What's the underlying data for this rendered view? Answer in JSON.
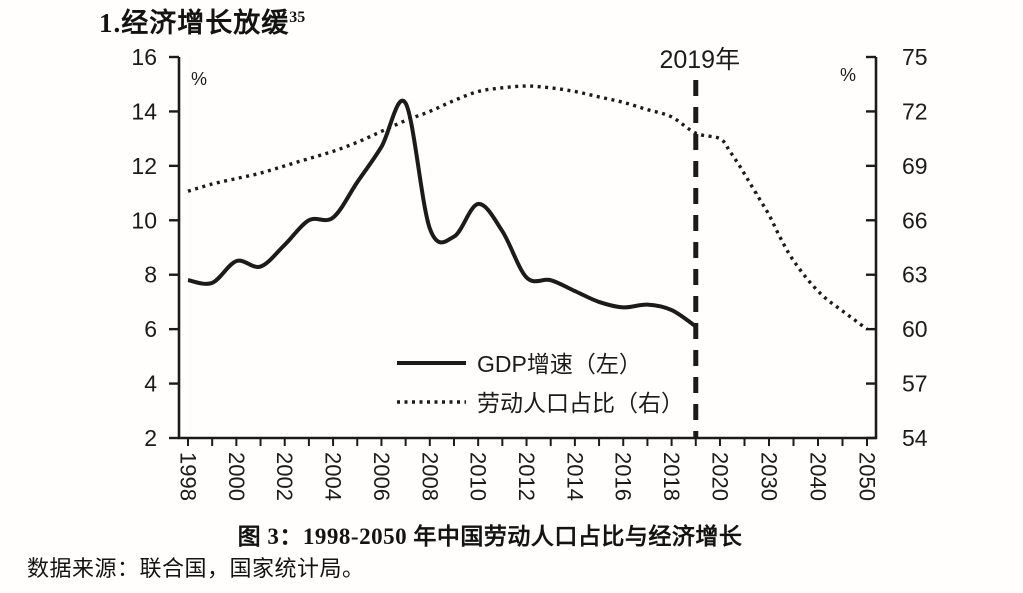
{
  "heading": {
    "text": "1.经济增长放缓",
    "footnote": "35"
  },
  "caption": "图 3：1998-2050 年中国劳动人口占比与经济增长",
  "source": "数据来源：联合国，国家统计局。",
  "chart_data": {
    "type": "line",
    "title": "图 3：1998-2050 年中国劳动人口占比与经济增长",
    "annotation_label": "2019年",
    "annotation_year": 2019,
    "background": "#fffefd",
    "ink_color": "#1b1b1b",
    "grid": false,
    "legend_position": "inside-bottom-center",
    "left_axis": {
      "unit": "%",
      "min": 2,
      "max": 16,
      "ticks": [
        16,
        14,
        12,
        10,
        8,
        6,
        4,
        2
      ]
    },
    "right_axis": {
      "unit": "%",
      "min": 54,
      "max": 75,
      "ticks": [
        75,
        72,
        69,
        66,
        63,
        60,
        57,
        54
      ]
    },
    "x_axis": {
      "tick_labels": [
        "1998",
        "2000",
        "2002",
        "2004",
        "2006",
        "2008",
        "2010",
        "2012",
        "2014",
        "2016",
        "2018",
        "2020",
        "2030",
        "2040",
        "2050"
      ],
      "note": "linear 1998-2020 (2-year steps), compressed 2020-2050 (10-year steps)"
    },
    "series": [
      {
        "name": "GDP增速（左）",
        "axis": "left",
        "style": "solid",
        "points": [
          [
            1998,
            7.8
          ],
          [
            1999,
            7.7
          ],
          [
            2000,
            8.5
          ],
          [
            2001,
            8.3
          ],
          [
            2002,
            9.1
          ],
          [
            2003,
            10.0
          ],
          [
            2004,
            10.1
          ],
          [
            2005,
            11.4
          ],
          [
            2006,
            12.7
          ],
          [
            2007,
            14.3
          ],
          [
            2008,
            9.7
          ],
          [
            2009,
            9.4
          ],
          [
            2010,
            10.6
          ],
          [
            2011,
            9.6
          ],
          [
            2012,
            7.9
          ],
          [
            2013,
            7.8
          ],
          [
            2014,
            7.4
          ],
          [
            2015,
            7.0
          ],
          [
            2016,
            6.8
          ],
          [
            2017,
            6.9
          ],
          [
            2018,
            6.7
          ],
          [
            2019,
            6.1
          ]
        ]
      },
      {
        "name": "劳动人口占比（右）",
        "axis": "right",
        "style": "dotted",
        "points": [
          [
            1998,
            67.6
          ],
          [
            1999,
            68.0
          ],
          [
            2000,
            68.3
          ],
          [
            2001,
            68.6
          ],
          [
            2002,
            69.0
          ],
          [
            2003,
            69.4
          ],
          [
            2004,
            69.8
          ],
          [
            2005,
            70.3
          ],
          [
            2006,
            70.9
          ],
          [
            2007,
            71.5
          ],
          [
            2008,
            72.0
          ],
          [
            2009,
            72.6
          ],
          [
            2010,
            73.1
          ],
          [
            2011,
            73.3
          ],
          [
            2012,
            73.4
          ],
          [
            2013,
            73.3
          ],
          [
            2014,
            73.1
          ],
          [
            2015,
            72.8
          ],
          [
            2016,
            72.5
          ],
          [
            2017,
            72.1
          ],
          [
            2018,
            71.7
          ],
          [
            2019,
            70.8
          ],
          [
            2020,
            70.5
          ],
          [
            2022,
            69.8
          ],
          [
            2024,
            69.0
          ],
          [
            2026,
            68.1
          ],
          [
            2028,
            67.2
          ],
          [
            2030,
            66.3
          ],
          [
            2032,
            65.2
          ],
          [
            2034,
            64.2
          ],
          [
            2036,
            63.4
          ],
          [
            2038,
            62.7
          ],
          [
            2040,
            62.1
          ],
          [
            2042,
            61.6
          ],
          [
            2044,
            61.2
          ],
          [
            2046,
            60.8
          ],
          [
            2048,
            60.4
          ],
          [
            2050,
            60.0
          ]
        ]
      }
    ]
  }
}
